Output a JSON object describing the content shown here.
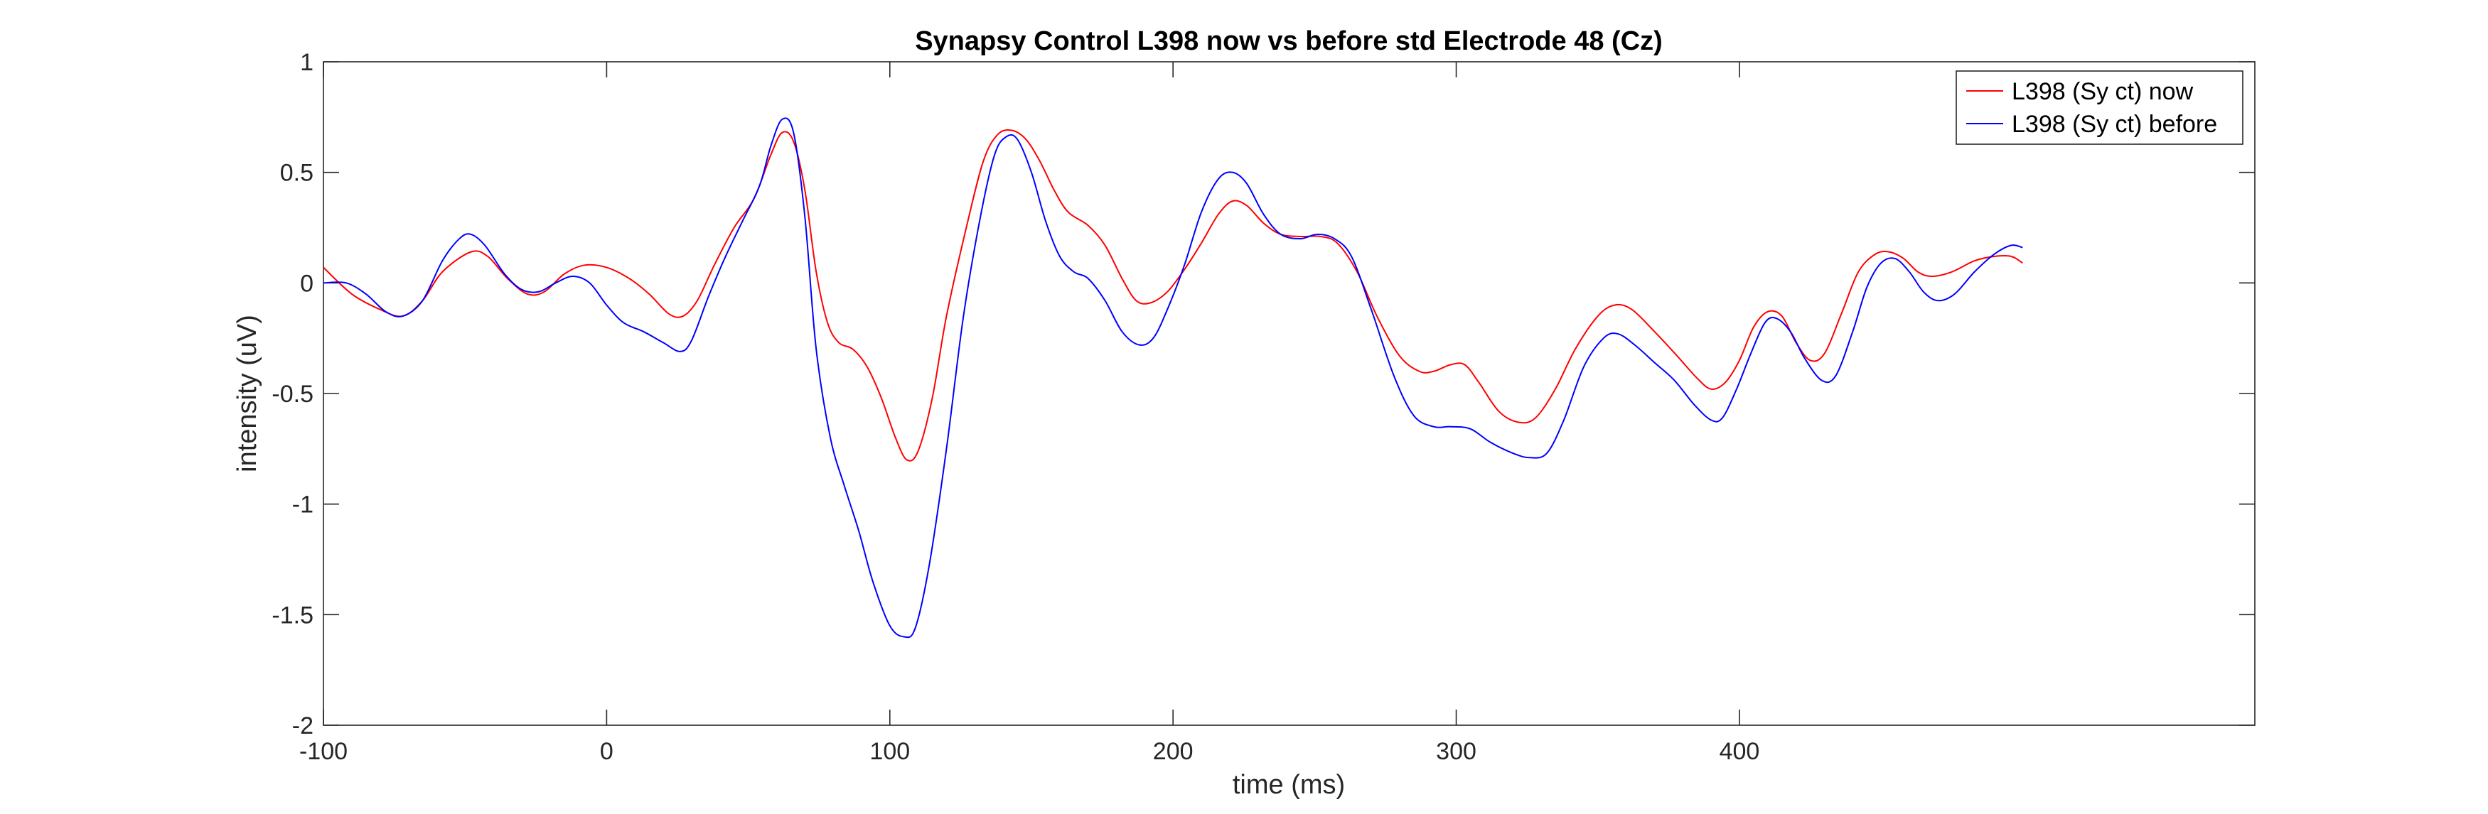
{
  "chart_data": {
    "type": "line",
    "title": "Synapsy Control L398 now vs before std Electrode 48 (Cz)",
    "xlabel": "time (ms)",
    "ylabel": "intensity (uV)",
    "xlim": [
      -100,
      582
    ],
    "ylim": [
      -2,
      1
    ],
    "xticks": [
      -100,
      0,
      100,
      200,
      300,
      400
    ],
    "xtick_labels": [
      "-100",
      "0",
      "100",
      "200",
      "300",
      "400"
    ],
    "yticks": [
      -2,
      -1.5,
      -1,
      -0.5,
      0,
      0.5,
      1
    ],
    "ytick_labels": [
      "-2",
      "-1.5",
      "-1",
      "-0.5",
      "0",
      "0.5",
      "1"
    ],
    "grid": false,
    "legend_position": "top-right",
    "series": [
      {
        "name": "L398 (Sy ct) now",
        "color": "#ff0000",
        "points": [
          [
            -100,
            0.07
          ],
          [
            -90,
            -0.05
          ],
          [
            -80,
            -0.12
          ],
          [
            -72,
            -0.15
          ],
          [
            -65,
            -0.08
          ],
          [
            -58,
            0.05
          ],
          [
            -48,
            0.14
          ],
          [
            -42,
            0.12
          ],
          [
            -35,
            0.02
          ],
          [
            -28,
            -0.05
          ],
          [
            -22,
            -0.04
          ],
          [
            -15,
            0.04
          ],
          [
            -8,
            0.08
          ],
          [
            0,
            0.07
          ],
          [
            8,
            0.02
          ],
          [
            15,
            -0.05
          ],
          [
            22,
            -0.14
          ],
          [
            27,
            -0.15
          ],
          [
            32,
            -0.08
          ],
          [
            38,
            0.08
          ],
          [
            45,
            0.25
          ],
          [
            52,
            0.38
          ],
          [
            58,
            0.58
          ],
          [
            62,
            0.68
          ],
          [
            66,
            0.64
          ],
          [
            70,
            0.42
          ],
          [
            74,
            0.05
          ],
          [
            78,
            -0.18
          ],
          [
            82,
            -0.27
          ],
          [
            87,
            -0.3
          ],
          [
            92,
            -0.38
          ],
          [
            97,
            -0.52
          ],
          [
            102,
            -0.7
          ],
          [
            106,
            -0.8
          ],
          [
            110,
            -0.76
          ],
          [
            115,
            -0.52
          ],
          [
            120,
            -0.15
          ],
          [
            127,
            0.25
          ],
          [
            133,
            0.55
          ],
          [
            138,
            0.67
          ],
          [
            143,
            0.69
          ],
          [
            148,
            0.65
          ],
          [
            153,
            0.55
          ],
          [
            158,
            0.42
          ],
          [
            163,
            0.32
          ],
          [
            170,
            0.26
          ],
          [
            176,
            0.17
          ],
          [
            182,
            0.02
          ],
          [
            187,
            -0.08
          ],
          [
            192,
            -0.09
          ],
          [
            198,
            -0.04
          ],
          [
            204,
            0.06
          ],
          [
            210,
            0.18
          ],
          [
            216,
            0.31
          ],
          [
            221,
            0.37
          ],
          [
            226,
            0.35
          ],
          [
            232,
            0.27
          ],
          [
            238,
            0.22
          ],
          [
            245,
            0.21
          ],
          [
            252,
            0.21
          ],
          [
            258,
            0.18
          ],
          [
            265,
            0.05
          ],
          [
            272,
            -0.15
          ],
          [
            280,
            -0.33
          ],
          [
            287,
            -0.4
          ],
          [
            292,
            -0.4
          ],
          [
            298,
            -0.37
          ],
          [
            303,
            -0.37
          ],
          [
            308,
            -0.45
          ],
          [
            315,
            -0.58
          ],
          [
            322,
            -0.63
          ],
          [
            328,
            -0.61
          ],
          [
            335,
            -0.48
          ],
          [
            342,
            -0.3
          ],
          [
            350,
            -0.15
          ],
          [
            356,
            -0.1
          ],
          [
            362,
            -0.12
          ],
          [
            370,
            -0.22
          ],
          [
            378,
            -0.33
          ],
          [
            385,
            -0.43
          ],
          [
            390,
            -0.48
          ],
          [
            395,
            -0.45
          ],
          [
            400,
            -0.35
          ],
          [
            405,
            -0.2
          ],
          [
            410,
            -0.13
          ],
          [
            415,
            -0.15
          ],
          [
            420,
            -0.27
          ],
          [
            425,
            -0.35
          ],
          [
            430,
            -0.32
          ],
          [
            436,
            -0.14
          ],
          [
            442,
            0.05
          ],
          [
            448,
            0.13
          ],
          [
            453,
            0.14
          ],
          [
            458,
            0.11
          ],
          [
            463,
            0.05
          ],
          [
            468,
            0.03
          ],
          [
            475,
            0.05
          ],
          [
            483,
            0.1
          ],
          [
            490,
            0.12
          ],
          [
            496,
            0.12
          ],
          [
            500,
            0.09
          ]
        ]
      },
      {
        "name": "L398 (Sy ct) before",
        "color": "#0000ff",
        "points": [
          [
            -100,
            0
          ],
          [
            -92,
            0
          ],
          [
            -85,
            -0.05
          ],
          [
            -78,
            -0.13
          ],
          [
            -72,
            -0.15
          ],
          [
            -65,
            -0.08
          ],
          [
            -58,
            0.1
          ],
          [
            -52,
            0.2
          ],
          [
            -48,
            0.22
          ],
          [
            -43,
            0.17
          ],
          [
            -36,
            0.04
          ],
          [
            -30,
            -0.03
          ],
          [
            -24,
            -0.04
          ],
          [
            -18,
            0
          ],
          [
            -12,
            0.03
          ],
          [
            -6,
            0
          ],
          [
            0,
            -0.1
          ],
          [
            6,
            -0.18
          ],
          [
            13,
            -0.22
          ],
          [
            20,
            -0.27
          ],
          [
            26,
            -0.31
          ],
          [
            30,
            -0.26
          ],
          [
            36,
            -0.06
          ],
          [
            42,
            0.12
          ],
          [
            48,
            0.28
          ],
          [
            54,
            0.44
          ],
          [
            58,
            0.62
          ],
          [
            62,
            0.74
          ],
          [
            66,
            0.68
          ],
          [
            70,
            0.3
          ],
          [
            74,
            -0.3
          ],
          [
            79,
            -0.7
          ],
          [
            84,
            -0.92
          ],
          [
            89,
            -1.12
          ],
          [
            94,
            -1.35
          ],
          [
            100,
            -1.55
          ],
          [
            105,
            -1.6
          ],
          [
            109,
            -1.56
          ],
          [
            114,
            -1.27
          ],
          [
            120,
            -0.75
          ],
          [
            126,
            -0.15
          ],
          [
            132,
            0.3
          ],
          [
            137,
            0.58
          ],
          [
            141,
            0.66
          ],
          [
            145,
            0.65
          ],
          [
            150,
            0.5
          ],
          [
            155,
            0.28
          ],
          [
            160,
            0.12
          ],
          [
            165,
            0.05
          ],
          [
            170,
            0.02
          ],
          [
            176,
            -0.08
          ],
          [
            182,
            -0.22
          ],
          [
            188,
            -0.28
          ],
          [
            193,
            -0.25
          ],
          [
            198,
            -0.12
          ],
          [
            204,
            0.08
          ],
          [
            210,
            0.32
          ],
          [
            216,
            0.47
          ],
          [
            221,
            0.5
          ],
          [
            226,
            0.45
          ],
          [
            232,
            0.31
          ],
          [
            238,
            0.22
          ],
          [
            245,
            0.2
          ],
          [
            251,
            0.22
          ],
          [
            257,
            0.2
          ],
          [
            263,
            0.12
          ],
          [
            270,
            -0.12
          ],
          [
            278,
            -0.42
          ],
          [
            285,
            -0.6
          ],
          [
            292,
            -0.65
          ],
          [
            298,
            -0.65
          ],
          [
            305,
            -0.66
          ],
          [
            312,
            -0.72
          ],
          [
            320,
            -0.77
          ],
          [
            326,
            -0.79
          ],
          [
            332,
            -0.77
          ],
          [
            338,
            -0.62
          ],
          [
            345,
            -0.38
          ],
          [
            352,
            -0.25
          ],
          [
            357,
            -0.23
          ],
          [
            363,
            -0.28
          ],
          [
            370,
            -0.36
          ],
          [
            377,
            -0.44
          ],
          [
            384,
            -0.55
          ],
          [
            390,
            -0.62
          ],
          [
            394,
            -0.61
          ],
          [
            399,
            -0.48
          ],
          [
            404,
            -0.32
          ],
          [
            409,
            -0.18
          ],
          [
            413,
            -0.16
          ],
          [
            418,
            -0.22
          ],
          [
            423,
            -0.34
          ],
          [
            429,
            -0.44
          ],
          [
            434,
            -0.42
          ],
          [
            440,
            -0.22
          ],
          [
            445,
            -0.02
          ],
          [
            450,
            0.09
          ],
          [
            455,
            0.11
          ],
          [
            460,
            0.05
          ],
          [
            465,
            -0.04
          ],
          [
            470,
            -0.08
          ],
          [
            476,
            -0.05
          ],
          [
            483,
            0.05
          ],
          [
            490,
            0.13
          ],
          [
            496,
            0.17
          ],
          [
            500,
            0.16
          ]
        ]
      }
    ]
  }
}
